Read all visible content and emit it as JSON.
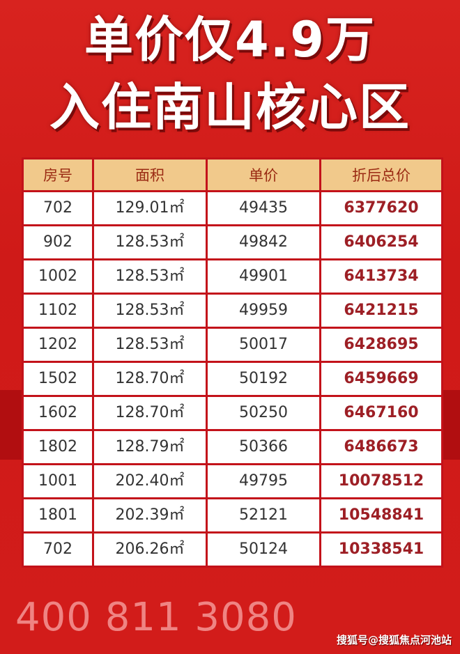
{
  "title": {
    "line1": "单价仅4.9万",
    "line2": "入住南山核心区"
  },
  "table": {
    "headers": [
      "房号",
      "面积",
      "单价",
      "折后总价"
    ],
    "area_unit": "㎡",
    "rows": [
      {
        "room": "702",
        "area": "129.01",
        "unit_price": "49435",
        "total": "6377620"
      },
      {
        "room": "902",
        "area": "128.53",
        "unit_price": "49842",
        "total": "6406254"
      },
      {
        "room": "1002",
        "area": "128.53",
        "unit_price": "49901",
        "total": "6413734"
      },
      {
        "room": "1102",
        "area": "128.53",
        "unit_price": "49959",
        "total": "6421215"
      },
      {
        "room": "1202",
        "area": "128.53",
        "unit_price": "50017",
        "total": "6428695"
      },
      {
        "room": "1502",
        "area": "128.70",
        "unit_price": "50192",
        "total": "6459669"
      },
      {
        "room": "1602",
        "area": "128.70",
        "unit_price": "50250",
        "total": "6467160"
      },
      {
        "room": "1802",
        "area": "128.79",
        "unit_price": "50366",
        "total": "6486673"
      },
      {
        "room": "1001",
        "area": "202.40",
        "unit_price": "49795",
        "total": "10078512"
      },
      {
        "room": "1801",
        "area": "202.39",
        "unit_price": "52121",
        "total": "10548841"
      },
      {
        "room": "702",
        "area": "206.26",
        "unit_price": "50124",
        "total": "10338541"
      }
    ]
  },
  "watermark": "400 811 3080",
  "footer": "搜狐号@搜狐焦点河池站",
  "colors": {
    "background": "#d21c1a",
    "header_bg": "#f1c98b",
    "total_text": "#9d1f25"
  }
}
